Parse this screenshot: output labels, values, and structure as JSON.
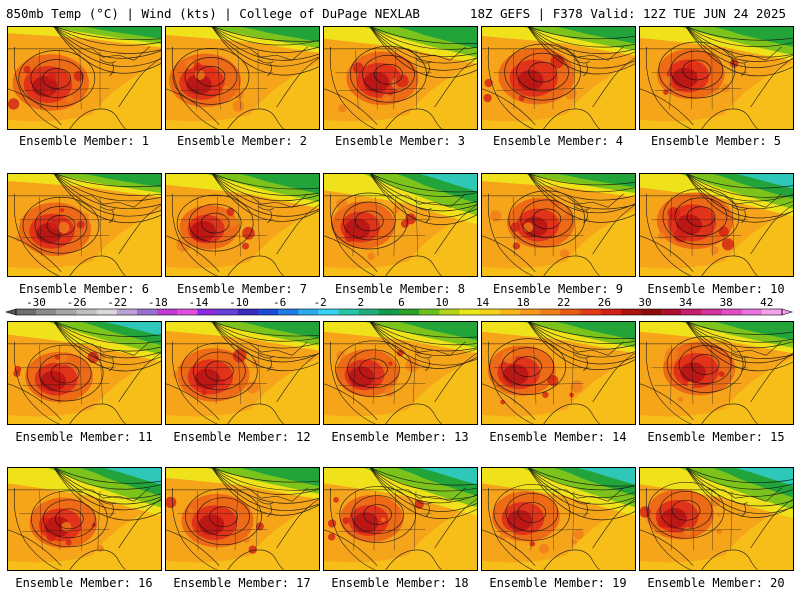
{
  "header": {
    "title_left": "850mb Temp (°C) | Wind (kts) | College of DuPage NEXLAB",
    "title_right": "18Z GEFS | F378 Valid: 12Z TUE JUN 24 2025"
  },
  "panels": [
    {
      "label": "Ensemble Member: 1",
      "cold": 0.05,
      "heat": 0.65
    },
    {
      "label": "Ensemble Member: 2",
      "cold": 0.15,
      "heat": 0.6
    },
    {
      "label": "Ensemble Member: 3",
      "cold": 0.35,
      "heat": 0.6
    },
    {
      "label": "Ensemble Member: 4",
      "cold": 0.2,
      "heat": 0.65
    },
    {
      "label": "Ensemble Member: 5",
      "cold": 0.3,
      "heat": 0.55
    },
    {
      "label": "Ensemble Member: 6",
      "cold": 0.1,
      "heat": 0.6
    },
    {
      "label": "Ensemble Member: 7",
      "cold": 0.3,
      "heat": 0.45
    },
    {
      "label": "Ensemble Member: 8",
      "cold": 0.6,
      "heat": 0.5
    },
    {
      "label": "Ensemble Member: 9",
      "cold": 0.1,
      "heat": 0.55
    },
    {
      "label": "Ensemble Member: 10",
      "cold": 0.45,
      "heat": 0.65
    },
    {
      "label": "Ensemble Member: 11",
      "cold": 0.4,
      "heat": 0.55
    },
    {
      "label": "Ensemble Member: 12",
      "cold": 0.2,
      "heat": 0.6
    },
    {
      "label": "Ensemble Member: 13",
      "cold": 0.25,
      "heat": 0.5
    },
    {
      "label": "Ensemble Member: 14",
      "cold": 0.25,
      "heat": 0.55
    },
    {
      "label": "Ensemble Member: 15",
      "cold": 0.25,
      "heat": 0.6
    },
    {
      "label": "Ensemble Member: 16",
      "cold": 0.55,
      "heat": 0.55
    },
    {
      "label": "Ensemble Member: 17",
      "cold": 0.25,
      "heat": 0.6
    },
    {
      "label": "Ensemble Member: 18",
      "cold": 0.55,
      "heat": 0.5
    },
    {
      "label": "Ensemble Member: 19",
      "cold": 0.55,
      "heat": 0.55
    },
    {
      "label": "Ensemble Member: 20",
      "cold": 0.6,
      "heat": 0.55
    }
  ],
  "colorbar": {
    "ticks": [
      "-30",
      "-26",
      "-22",
      "-18",
      "-14",
      "-10",
      "-6",
      "-2",
      "2",
      "6",
      "10",
      "14",
      "18",
      "22",
      "26",
      "30",
      "34",
      "38",
      "42"
    ],
    "colors": [
      "#6e6e6e",
      "#8c8c8c",
      "#a6a6a6",
      "#bfbfbf",
      "#d9d9d9",
      "#b9a3d6",
      "#9b6fd0",
      "#c23bd3",
      "#e04fe0",
      "#8a2be2",
      "#6a3fd8",
      "#3b2bbd",
      "#1f49d8",
      "#1f7be8",
      "#2aa9ef",
      "#35d3f0",
      "#26c6a6",
      "#1fb07a",
      "#139a4d",
      "#2aa02a",
      "#6cc01c",
      "#b5d51a",
      "#e8e81a",
      "#f4d21a",
      "#f6b61a",
      "#f59a1a",
      "#f07d1a",
      "#ea5a17",
      "#e23a16",
      "#d21f16",
      "#b01212",
      "#8e0c0c",
      "#a8102e",
      "#c21f6e",
      "#d2339b",
      "#e04fc4",
      "#ea74dc",
      "#f4a0ec"
    ]
  },
  "colors": {
    "border": "#000000",
    "map_lines": "#1a1a1a"
  }
}
